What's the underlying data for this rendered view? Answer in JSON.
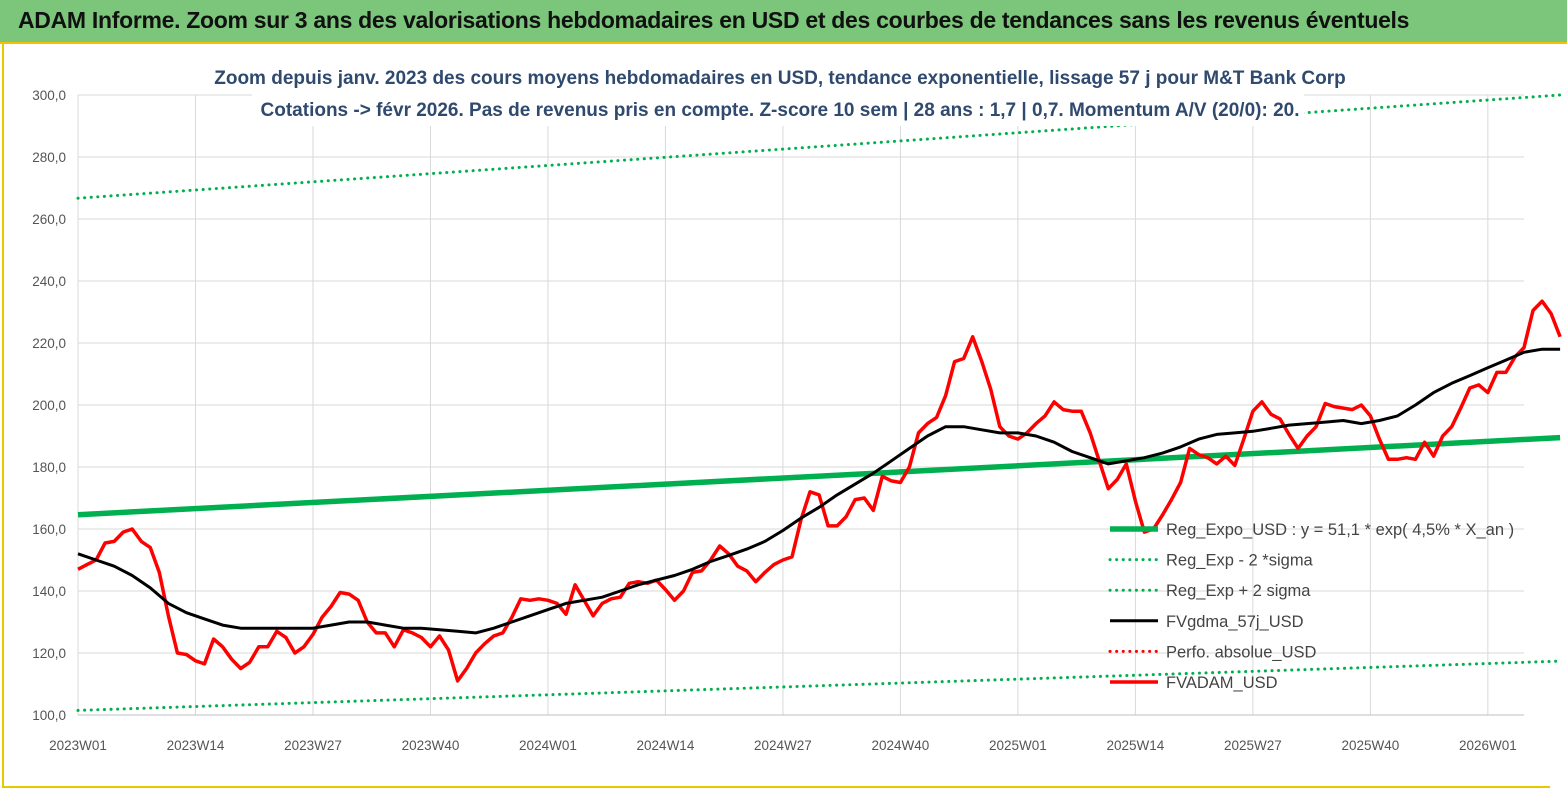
{
  "header": {
    "title": "ADAM Informe. Zoom sur 3 ans des valorisations hebdomadaires en USD et des courbes de tendances sans les revenus éventuels"
  },
  "chart_data": {
    "type": "line",
    "title_lines": [
      "Zoom depuis janv. 2023 des cours moyens hebdomadaires en USD, tendance exponentielle, lissage 57 j pour M&T Bank Corp",
      "Cotations -> févr 2026.  Pas de revenus pris en compte. Z-score 10 sem  | 28 ans : 1,7 | 0,7. Momentum A/V (20/0): 20."
    ],
    "xlabel": "",
    "ylabel": "",
    "ylim": [
      100,
      300
    ],
    "yticks": [
      "100,0",
      "120,0",
      "140,0",
      "160,0",
      "180,0",
      "200,0",
      "220,0",
      "240,0",
      "260,0",
      "280,0",
      "300,0"
    ],
    "xlim": [
      0,
      160
    ],
    "xticks": [
      {
        "label": "2023W01",
        "week": 0
      },
      {
        "label": "2023W14",
        "week": 13
      },
      {
        "label": "2023W27",
        "week": 26
      },
      {
        "label": "2023W40",
        "week": 39
      },
      {
        "label": "2024W01",
        "week": 52
      },
      {
        "label": "2024W14",
        "week": 65
      },
      {
        "label": "2024W27",
        "week": 78
      },
      {
        "label": "2024W40",
        "week": 91
      },
      {
        "label": "2025W01",
        "week": 104
      },
      {
        "label": "2025W14",
        "week": 117
      },
      {
        "label": "2025W27",
        "week": 130
      },
      {
        "label": "2025W40",
        "week": 143
      },
      {
        "label": "2026W01",
        "week": 156
      }
    ],
    "grid": "horizontal and vertical",
    "legend_position": "right",
    "colors": {
      "reg_expo": "#00b050",
      "reg_minus": "#00b050",
      "reg_plus": "#00b050",
      "fvgdma": "#000000",
      "perfo": "#ff0000",
      "fvadam": "#ff0000",
      "banner": "#7bc67b",
      "subtitle": "#2f4a6e"
    },
    "series": [
      {
        "key": "reg_expo",
        "name": "Reg_Expo_USD : y = 51,1 * exp( 4,5% *  X_an )",
        "style": "solid-thick",
        "x": [
          0,
          164
        ],
        "y": [
          164.6,
          189.5
        ]
      },
      {
        "key": "reg_minus",
        "name": "Reg_Exp - 2 *sigma",
        "style": "dotted",
        "x": [
          0,
          164
        ],
        "y": [
          101.5,
          117.4
        ]
      },
      {
        "key": "reg_plus",
        "name": "Reg_Exp + 2 sigma",
        "style": "dotted",
        "x": [
          0,
          164
        ],
        "y": [
          266.7,
          300
        ]
      },
      {
        "key": "fvgdma",
        "name": "FVgdma_57j_USD",
        "style": "solid",
        "x": [
          0,
          2,
          4,
          6,
          8,
          10,
          12,
          14,
          16,
          18,
          20,
          22,
          24,
          26,
          28,
          30,
          32,
          34,
          36,
          38,
          40,
          42,
          44,
          46,
          48,
          50,
          52,
          54,
          56,
          58,
          60,
          62,
          64,
          66,
          68,
          70,
          72,
          74,
          76,
          78,
          80,
          82,
          84,
          86,
          88,
          90,
          92,
          94,
          96,
          98,
          100,
          102,
          104,
          106,
          108,
          110,
          112,
          114,
          116,
          118,
          120,
          122,
          124,
          126,
          128,
          130,
          132,
          134,
          136,
          138,
          140,
          142,
          144,
          146,
          148,
          150,
          152,
          154,
          156,
          158,
          160,
          162,
          164
        ],
        "y": [
          152,
          150,
          148,
          145,
          141,
          136,
          133,
          131,
          129,
          128,
          128,
          128,
          128,
          128,
          129,
          130,
          130,
          129,
          128,
          128,
          127.5,
          127,
          126.5,
          128,
          130,
          132,
          134,
          136,
          137,
          138,
          140,
          142,
          143.5,
          145,
          147,
          149.5,
          151.5,
          153.5,
          156,
          159.5,
          163.5,
          167,
          171,
          174.5,
          178,
          182,
          186,
          190,
          193,
          193,
          192,
          191,
          191,
          190,
          188,
          185,
          183,
          181,
          182,
          183,
          184.5,
          186.5,
          189,
          190.5,
          191,
          191.5,
          192.5,
          193.5,
          194,
          194.5,
          195,
          194,
          195,
          196.5,
          200,
          204,
          207,
          209.5,
          212,
          214.5,
          217,
          218,
          218
        ]
      },
      {
        "key": "perfo",
        "name": "Perfo. absolue_USD",
        "style": "dotted",
        "x": [],
        "y": []
      },
      {
        "key": "fvadam",
        "name": "FVADAM_USD",
        "style": "solid-thick",
        "x": [
          0,
          1,
          2,
          3,
          4,
          5,
          6,
          7,
          8,
          9,
          10,
          11,
          12,
          13,
          14,
          15,
          16,
          17,
          18,
          19,
          20,
          21,
          22,
          23,
          24,
          25,
          26,
          27,
          28,
          29,
          30,
          31,
          32,
          33,
          34,
          35,
          36,
          37,
          38,
          39,
          40,
          41,
          42,
          43,
          44,
          45,
          46,
          47,
          48,
          49,
          50,
          51,
          52,
          53,
          54,
          55,
          56,
          57,
          58,
          59,
          60,
          61,
          62,
          63,
          64,
          65,
          66,
          67,
          68,
          69,
          70,
          71,
          72,
          73,
          74,
          75,
          76,
          77,
          78,
          79,
          80,
          81,
          82,
          83,
          84,
          85,
          86,
          87,
          88,
          89,
          90,
          91,
          92,
          93,
          94,
          95,
          96,
          97,
          98,
          99,
          100,
          101,
          102,
          103,
          104,
          105,
          106,
          107,
          108,
          109,
          110,
          111,
          112,
          113,
          114,
          115,
          116,
          117,
          118,
          119,
          120,
          121,
          122,
          123,
          124,
          125,
          126,
          127,
          128,
          129,
          130,
          131,
          132,
          133,
          134,
          135,
          136,
          137,
          138,
          139,
          140,
          141,
          142,
          143,
          144,
          145,
          146,
          147,
          148,
          149,
          150,
          151,
          152,
          153,
          154,
          155,
          156,
          157,
          158,
          159,
          160,
          161,
          162,
          163,
          164
        ],
        "y": [
          147,
          148.5,
          150,
          155.5,
          156,
          159,
          160,
          156,
          154,
          146,
          132,
          120,
          119.5,
          117.5,
          116.5,
          124.5,
          122,
          118,
          115,
          117,
          122,
          122,
          127,
          125,
          120,
          122,
          126,
          131.5,
          135,
          139.5,
          139,
          137,
          130,
          126.5,
          126.5,
          122,
          127.5,
          126.5,
          125,
          122,
          125.5,
          121,
          111,
          115,
          120,
          123,
          125.5,
          126.5,
          131.5,
          137.5,
          137,
          137.5,
          137,
          136,
          132.5,
          142,
          137,
          132,
          136,
          137.5,
          138,
          142.5,
          143,
          142.5,
          143.5,
          140.5,
          137,
          140,
          146,
          146.5,
          150,
          154.5,
          152,
          148,
          146.5,
          143,
          146,
          148.5,
          150,
          151,
          163,
          172,
          171,
          161,
          161,
          164,
          169.5,
          170,
          166,
          177,
          175.5,
          175,
          180,
          191,
          194,
          196,
          203,
          214,
          215,
          222,
          214,
          205,
          193,
          190,
          189,
          191,
          194,
          196.5,
          201,
          198.5,
          198,
          198,
          191,
          182,
          173,
          176,
          181,
          169,
          159,
          160,
          164.5,
          169.5,
          175,
          186,
          184,
          183,
          181,
          183.5,
          180.5,
          189,
          198,
          201,
          197,
          195.5,
          190.5,
          186,
          190,
          193,
          200.5,
          199.5,
          199,
          198.5,
          200,
          196.5,
          189,
          182.5,
          182.5,
          183,
          182.5,
          188,
          183.5,
          190,
          193,
          199,
          205.5,
          206.5,
          204,
          210.5,
          210.5,
          215.5,
          218.5,
          230.5,
          233.5,
          229.5,
          222
        ]
      }
    ]
  }
}
